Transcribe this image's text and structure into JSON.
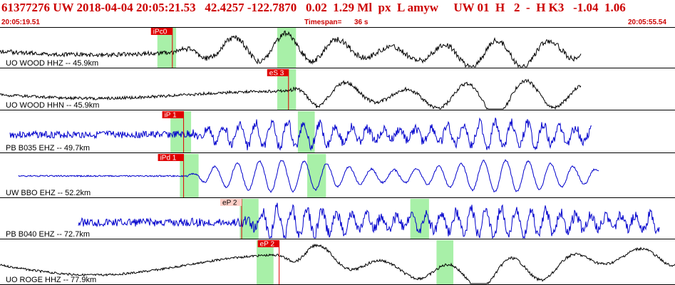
{
  "header": {
    "title": "61377276 UW 2018-04-04 20:05:21.53   42.4257 -122.7870   0.02  1.29 Ml  px  L amyw     UW 01  H   2  -  H K3   -1.04  1.06",
    "start_time": "20:05:19.51",
    "timespan_label": "Timespan=",
    "timespan_value": "36 s",
    "end_time": "20:05:55.54"
  },
  "colors": {
    "title_red": "#cc0000",
    "pick_red": "#e00000",
    "pick_pale": "#ffd0c8",
    "window_green": "#a8f0a8",
    "trace_black": "#000000",
    "trace_blue": "#0000cc",
    "separator": "#000000"
  },
  "traces": [
    {
      "label": "UO WOOD HHZ -- 45.9km",
      "color": "black",
      "pick": "iPc0",
      "pick_style": "strong",
      "pick_time_s": 9.2,
      "windows_s": [
        [
          8.4,
          9.4
        ],
        [
          14.8,
          15.8
        ]
      ]
    },
    {
      "label": "UO WOOD HHN -- 45.9km",
      "color": "black",
      "pick": "eS 3",
      "pick_style": "strong",
      "pick_time_s": 15.4,
      "windows_s": [
        [
          14.8,
          15.8
        ]
      ]
    },
    {
      "label": "PB B035 EHZ -- 49.7km",
      "color": "blue",
      "pick": "iP 1",
      "pick_style": "strong",
      "pick_time_s": 9.8,
      "windows_s": [
        [
          9.1,
          10.2
        ],
        [
          15.9,
          16.8
        ]
      ]
    },
    {
      "label": "UW BBO EHZ -- 52.2km",
      "color": "blue",
      "pick": "iPd 1",
      "pick_style": "strong",
      "pick_time_s": 9.8,
      "windows_s": [
        [
          9.6,
          10.6
        ],
        [
          16.4,
          17.4
        ]
      ]
    },
    {
      "label": "PB B040 EHZ -- 72.7km",
      "color": "blue",
      "pick": "eP 2",
      "pick_style": "pale",
      "pick_time_s": 12.9,
      "windows_s": [
        [
          12.8,
          13.8
        ],
        [
          21.9,
          22.9
        ]
      ]
    },
    {
      "label": "UO ROGE HHZ -- 77.9km",
      "color": "black",
      "pick": "eP 2",
      "pick_style": "strong",
      "pick_time_s": 14.9,
      "windows_s": [
        [
          13.7,
          14.6
        ],
        [
          23.3,
          24.2
        ]
      ]
    }
  ]
}
